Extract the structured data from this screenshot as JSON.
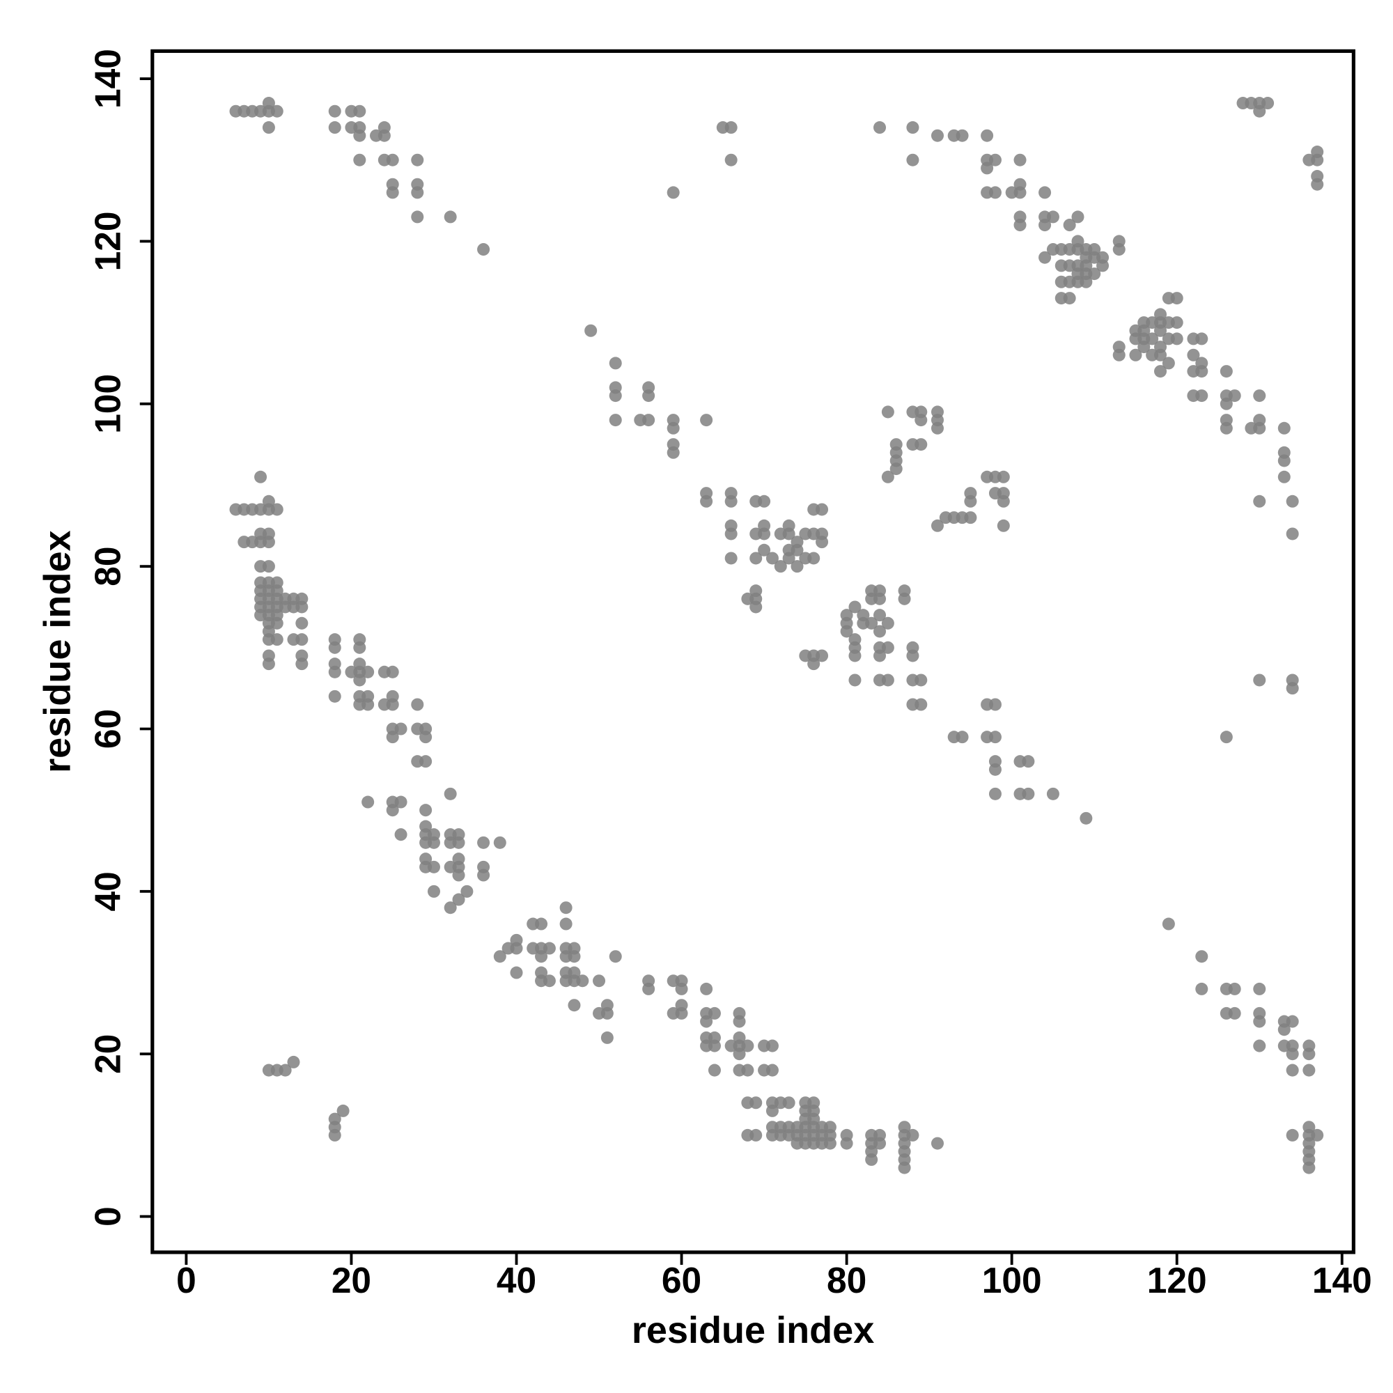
{
  "chart_data": {
    "type": "scatter",
    "xlabel": "residue index",
    "ylabel": "residue index",
    "color": "#808080",
    "xlim": [
      -4.1,
      141.4
    ],
    "ylim": [
      -4.4,
      143.4
    ],
    "xticks": [
      0,
      20,
      40,
      60,
      80,
      100,
      120,
      140
    ],
    "yticks": [
      0,
      20,
      40,
      60,
      80,
      100,
      120,
      140
    ],
    "x": [
      6,
      7,
      8,
      9,
      10,
      11,
      10,
      10,
      18,
      18,
      20,
      21,
      20,
      21,
      21,
      23,
      24,
      24,
      21,
      24,
      25,
      25,
      25,
      28,
      28,
      28,
      28,
      32,
      36,
      49,
      52,
      52,
      52,
      52,
      55,
      56,
      56,
      56,
      59,
      59,
      59,
      59,
      59,
      63,
      65,
      66,
      66,
      63,
      63,
      66,
      66,
      66,
      66,
      66,
      69,
      70,
      69,
      70,
      70,
      69,
      70,
      71,
      72,
      72,
      73,
      73,
      73,
      73,
      74,
      74,
      74,
      75,
      75,
      76,
      76,
      77,
      76,
      77,
      77,
      68,
      69,
      69,
      69,
      75,
      76,
      76,
      77,
      80,
      80,
      80,
      81,
      81,
      81,
      81,
      81,
      82,
      82,
      83,
      84,
      83,
      84,
      83,
      84,
      84,
      84,
      84,
      84,
      85,
      85,
      85,
      87,
      87,
      88,
      88,
      88,
      89,
      88,
      89,
      84,
      88,
      88,
      85,
      85,
      86,
      86,
      86,
      86,
      88,
      89,
      89,
      88,
      89,
      91,
      91,
      91,
      91,
      92,
      93,
      94,
      95,
      95,
      95,
      97,
      98,
      99,
      98,
      99,
      99,
      99,
      91,
      93,
      94,
      97,
      97,
      97,
      98,
      97,
      98,
      100,
      101,
      101,
      101,
      101,
      101,
      104,
      104,
      104,
      105,
      105,
      104,
      106,
      107,
      107,
      106,
      106,
      106,
      107,
      107,
      107,
      108,
      108,
      108,
      108,
      108,
      108,
      109,
      109,
      109,
      109,
      109,
      110,
      110,
      110,
      111,
      111,
      113,
      113,
      113,
      113,
      115,
      115,
      115,
      116,
      116,
      116,
      116,
      117,
      117,
      117,
      118,
      118,
      118,
      118,
      118,
      118,
      119,
      119,
      119,
      120,
      120,
      119,
      120,
      122,
      123,
      122,
      122,
      123,
      123,
      122,
      123,
      126,
      126,
      126,
      127,
      126,
      126,
      129,
      130,
      130,
      130,
      133,
      133,
      133,
      133,
      134,
      134,
      130,
      128,
      129,
      130,
      130,
      131,
      136,
      137,
      137,
      137,
      137,
      9,
      6,
      7,
      8,
      9,
      10,
      10,
      11,
      7,
      8,
      9,
      9,
      10,
      10,
      9,
      10,
      9,
      9,
      9,
      9,
      9,
      10,
      10,
      10,
      10,
      10,
      10,
      10,
      10,
      10,
      10,
      11,
      11,
      11,
      11,
      11,
      11,
      11,
      12,
      12,
      13,
      13,
      14,
      14,
      13,
      14,
      14,
      14,
      14,
      18,
      18,
      18,
      18,
      18,
      21,
      21,
      21,
      20,
      21,
      21,
      22,
      21,
      21,
      22,
      22,
      24,
      25,
      24,
      25,
      25,
      25,
      25,
      26,
      28,
      28,
      29,
      29,
      28,
      29,
      22,
      25,
      26,
      25,
      26,
      29,
      29,
      29,
      30,
      29,
      30,
      29,
      29,
      30,
      30,
      32,
      32,
      33,
      32,
      33,
      33,
      33,
      32,
      33,
      34,
      33,
      32,
      36,
      38,
      36,
      36,
      38,
      39,
      40,
      40,
      40,
      42,
      43,
      42,
      43,
      43,
      43,
      43,
      44,
      44,
      46,
      46,
      46,
      47,
      46,
      47,
      46,
      47,
      46,
      47,
      48,
      47,
      50,
      50,
      51,
      51,
      51,
      52,
      56,
      56,
      59,
      60,
      60,
      59,
      60,
      60,
      63,
      63,
      64,
      63,
      63,
      64,
      63,
      64,
      64,
      66,
      67,
      67,
      68,
      67,
      67,
      67,
      67,
      68,
      70,
      71,
      70,
      71,
      68,
      69,
      71,
      72,
      73,
      71,
      68,
      69,
      71,
      71,
      72,
      72,
      73,
      73,
      74,
      74,
      74,
      75,
      75,
      75,
      75,
      75,
      75,
      76,
      76,
      76,
      76,
      76,
      76,
      77,
      77,
      77,
      78,
      78,
      78,
      80,
      80,
      83,
      84,
      83,
      84,
      83,
      83,
      87,
      87,
      88,
      87,
      87,
      87,
      87,
      91,
      10,
      11,
      12,
      13,
      18,
      18,
      18,
      19,
      93,
      94,
      97,
      98,
      98,
      98,
      98,
      97,
      98,
      101,
      102,
      101,
      102,
      105,
      109,
      119,
      123,
      123,
      126,
      127,
      126,
      127,
      130,
      130,
      130,
      130,
      133,
      134,
      133,
      133,
      134,
      134,
      136,
      136,
      134,
      136,
      134,
      136,
      136,
      137,
      136,
      136,
      136,
      136,
      126,
      130,
      134,
      134
    ],
    "values": [
      136,
      136,
      136,
      136,
      136,
      136,
      137,
      134,
      136,
      134,
      136,
      136,
      134,
      134,
      133,
      133,
      133,
      134,
      130,
      130,
      130,
      127,
      126,
      130,
      127,
      126,
      123,
      123,
      119,
      109,
      105,
      102,
      101,
      98,
      98,
      98,
      102,
      101,
      98,
      97,
      95,
      94,
      126,
      98,
      134,
      134,
      130,
      89,
      88,
      89,
      88,
      85,
      84,
      81,
      88,
      88,
      84,
      84,
      85,
      81,
      82,
      81,
      80,
      84,
      85,
      84,
      82,
      81,
      80,
      82,
      83,
      84,
      81,
      81,
      87,
      87,
      84,
      84,
      83,
      76,
      77,
      75,
      76,
      69,
      69,
      68,
      69,
      74,
      73,
      72,
      75,
      71,
      70,
      69,
      66,
      73,
      74,
      77,
      77,
      76,
      76,
      73,
      74,
      72,
      70,
      69,
      66,
      66,
      70,
      73,
      77,
      76,
      70,
      69,
      66,
      66,
      63,
      63,
      134,
      134,
      130,
      99,
      91,
      92,
      93,
      94,
      95,
      99,
      99,
      98,
      95,
      95,
      99,
      98,
      97,
      85,
      86,
      86,
      86,
      86,
      89,
      88,
      91,
      91,
      91,
      89,
      89,
      88,
      85,
      133,
      133,
      133,
      133,
      130,
      129,
      130,
      126,
      126,
      126,
      126,
      127,
      130,
      123,
      122,
      126,
      123,
      122,
      123,
      119,
      118,
      119,
      119,
      117,
      117,
      115,
      113,
      113,
      115,
      122,
      123,
      120,
      119,
      117,
      116,
      115,
      119,
      118,
      117,
      116,
      115,
      119,
      118,
      116,
      118,
      117,
      120,
      119,
      107,
      106,
      106,
      108,
      109,
      110,
      109,
      108,
      107,
      110,
      108,
      106,
      111,
      110,
      109,
      107,
      106,
      104,
      110,
      108,
      105,
      108,
      110,
      113,
      113,
      108,
      108,
      106,
      104,
      105,
      104,
      101,
      101,
      104,
      101,
      100,
      101,
      98,
      97,
      97,
      97,
      98,
      101,
      97,
      94,
      93,
      91,
      88,
      84,
      88,
      137,
      137,
      137,
      136,
      137,
      130,
      131,
      128,
      127,
      130,
      91,
      87,
      87,
      87,
      87,
      87,
      88,
      87,
      83,
      83,
      83,
      84,
      84,
      83,
      80,
      80,
      78,
      77,
      76,
      75,
      74,
      78,
      77,
      76,
      75,
      74,
      73,
      72,
      71,
      69,
      68,
      78,
      77,
      76,
      75,
      74,
      73,
      71,
      76,
      75,
      76,
      75,
      76,
      75,
      71,
      73,
      71,
      69,
      68,
      71,
      70,
      68,
      67,
      64,
      71,
      70,
      68,
      67,
      67,
      66,
      67,
      64,
      63,
      64,
      63,
      67,
      67,
      63,
      64,
      63,
      60,
      59,
      60,
      63,
      60,
      60,
      59,
      56,
      56,
      51,
      51,
      51,
      50,
      47,
      50,
      48,
      47,
      47,
      46,
      46,
      44,
      43,
      43,
      40,
      52,
      47,
      47,
      46,
      46,
      44,
      43,
      43,
      42,
      40,
      39,
      38,
      46,
      46,
      43,
      42,
      32,
      33,
      34,
      33,
      30,
      36,
      36,
      33,
      33,
      32,
      30,
      29,
      33,
      29,
      38,
      36,
      33,
      33,
      32,
      32,
      30,
      30,
      29,
      29,
      29,
      26,
      29,
      25,
      26,
      25,
      22,
      32,
      29,
      28,
      29,
      29,
      28,
      25,
      25,
      26,
      28,
      25,
      25,
      24,
      22,
      22,
      21,
      21,
      18,
      21,
      21,
      22,
      21,
      25,
      24,
      20,
      18,
      18,
      21,
      21,
      18,
      18,
      14,
      14,
      14,
      14,
      14,
      13,
      10,
      10,
      11,
      10,
      11,
      10,
      11,
      10,
      11,
      10,
      9,
      14,
      13,
      12,
      11,
      10,
      9,
      14,
      13,
      12,
      11,
      10,
      9,
      11,
      10,
      9,
      11,
      10,
      9,
      10,
      9,
      10,
      10,
      9,
      9,
      8,
      7,
      11,
      10,
      10,
      9,
      8,
      7,
      6,
      9,
      18,
      18,
      18,
      19,
      12,
      11,
      10,
      13,
      59,
      59,
      59,
      59,
      56,
      55,
      52,
      63,
      63,
      56,
      56,
      52,
      52,
      52,
      49,
      36,
      32,
      28,
      28,
      28,
      25,
      25,
      28,
      25,
      24,
      21,
      24,
      24,
      23,
      21,
      21,
      20,
      21,
      20,
      18,
      18,
      10,
      11,
      10,
      10,
      9,
      8,
      7,
      6,
      59,
      66,
      66,
      65
    ]
  }
}
